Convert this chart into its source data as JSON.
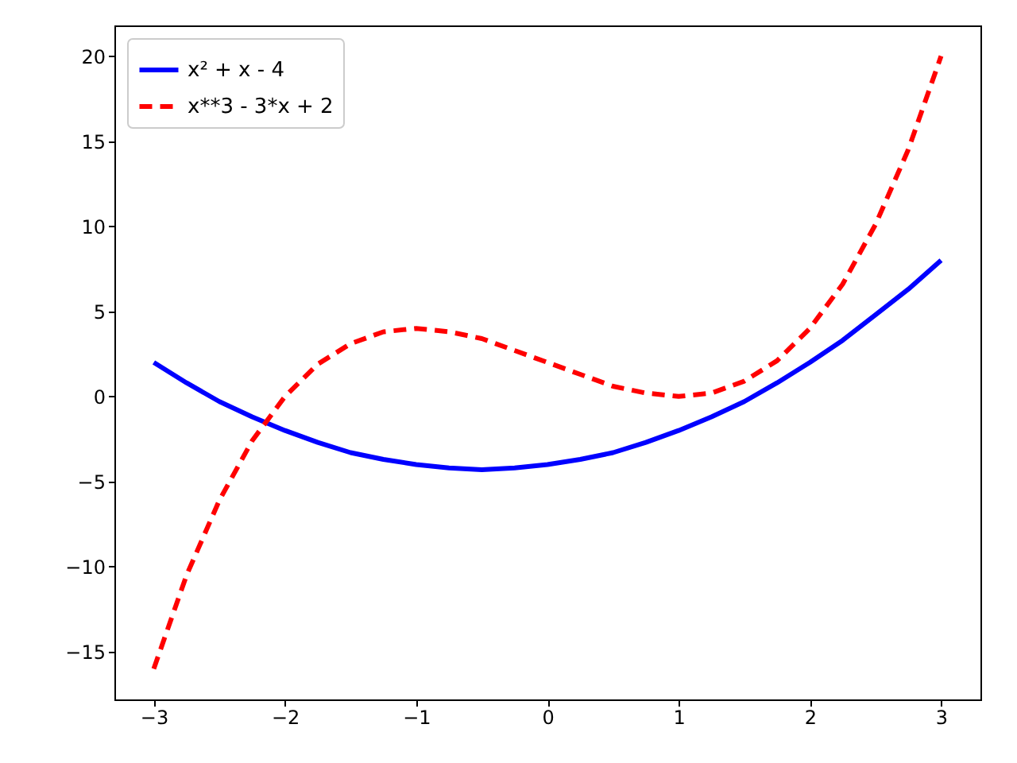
{
  "chart_data": {
    "type": "line",
    "x": [
      -3,
      -2.75,
      -2.5,
      -2.25,
      -2,
      -1.75,
      -1.5,
      -1.25,
      -1,
      -0.75,
      -0.5,
      -0.25,
      0,
      0.25,
      0.5,
      0.75,
      1,
      1.25,
      1.5,
      1.75,
      2,
      2.25,
      2.5,
      2.75,
      3
    ],
    "series": [
      {
        "name": "x² + x - 4",
        "color": "#0000ff",
        "line_style": "solid",
        "values": [
          2,
          0.8,
          -0.3,
          -1.2,
          -2,
          -2.7,
          -3.3,
          -3.7,
          -4,
          -4.2,
          -4.3,
          -4.2,
          -4,
          -3.7,
          -3.3,
          -2.7,
          -2,
          -1.2,
          -0.3,
          0.8,
          2,
          3.3,
          4.8,
          6.3,
          8
        ]
      },
      {
        "name": "x**3 - 3*x + 2",
        "color": "#ff0000",
        "line_style": "dashed",
        "values": [
          -16,
          -10.5,
          -6.1,
          -2.6,
          0,
          1.9,
          3.1,
          3.8,
          4,
          3.8,
          3.4,
          2.7,
          2,
          1.3,
          0.6,
          0.2,
          0,
          0.2,
          0.9,
          2.1,
          4,
          6.6,
          10.1,
          14.5,
          20
        ]
      }
    ],
    "xlim": [
      -3.3,
      3.3
    ],
    "xticks": [
      -3,
      -2,
      -1,
      0,
      1,
      2,
      3
    ],
    "ylim": [
      -17.8,
      21.8
    ],
    "yticks": [
      -15,
      -10,
      -5,
      0,
      5,
      10,
      15,
      20
    ],
    "grid": false,
    "legend": "top left",
    "marker": "none"
  }
}
